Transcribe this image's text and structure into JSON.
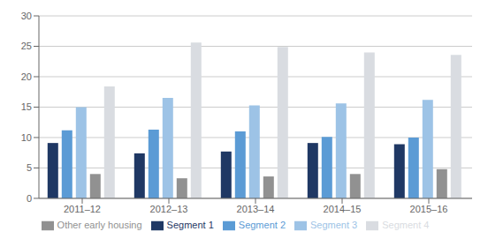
{
  "chart_data": {
    "type": "bar",
    "categories": [
      "2011–12",
      "2012–13",
      "2013–14",
      "2014–15",
      "2015–16"
    ],
    "series": [
      {
        "name": "Segment 1",
        "color": "#1f3864",
        "values": [
          9.1,
          7.4,
          7.7,
          9.1,
          8.9
        ]
      },
      {
        "name": "Segment 2",
        "color": "#5b9bd5",
        "values": [
          11.2,
          11.3,
          11.0,
          10.1,
          10.0
        ]
      },
      {
        "name": "Segment 3",
        "color": "#9dc3e6",
        "values": [
          15.0,
          16.5,
          15.3,
          15.6,
          16.2
        ]
      },
      {
        "name": "Other early housing",
        "color": "#919191",
        "values": [
          4.0,
          3.3,
          3.6,
          4.0,
          4.8
        ]
      },
      {
        "name": "Segment 4",
        "color": "#d9dce1",
        "values": [
          18.4,
          25.6,
          24.9,
          24.0,
          23.6
        ]
      }
    ],
    "ylim": [
      0,
      30
    ],
    "yticks": [
      0,
      5,
      10,
      15,
      20,
      25,
      30
    ],
    "grid": true,
    "legend": "bottom"
  }
}
